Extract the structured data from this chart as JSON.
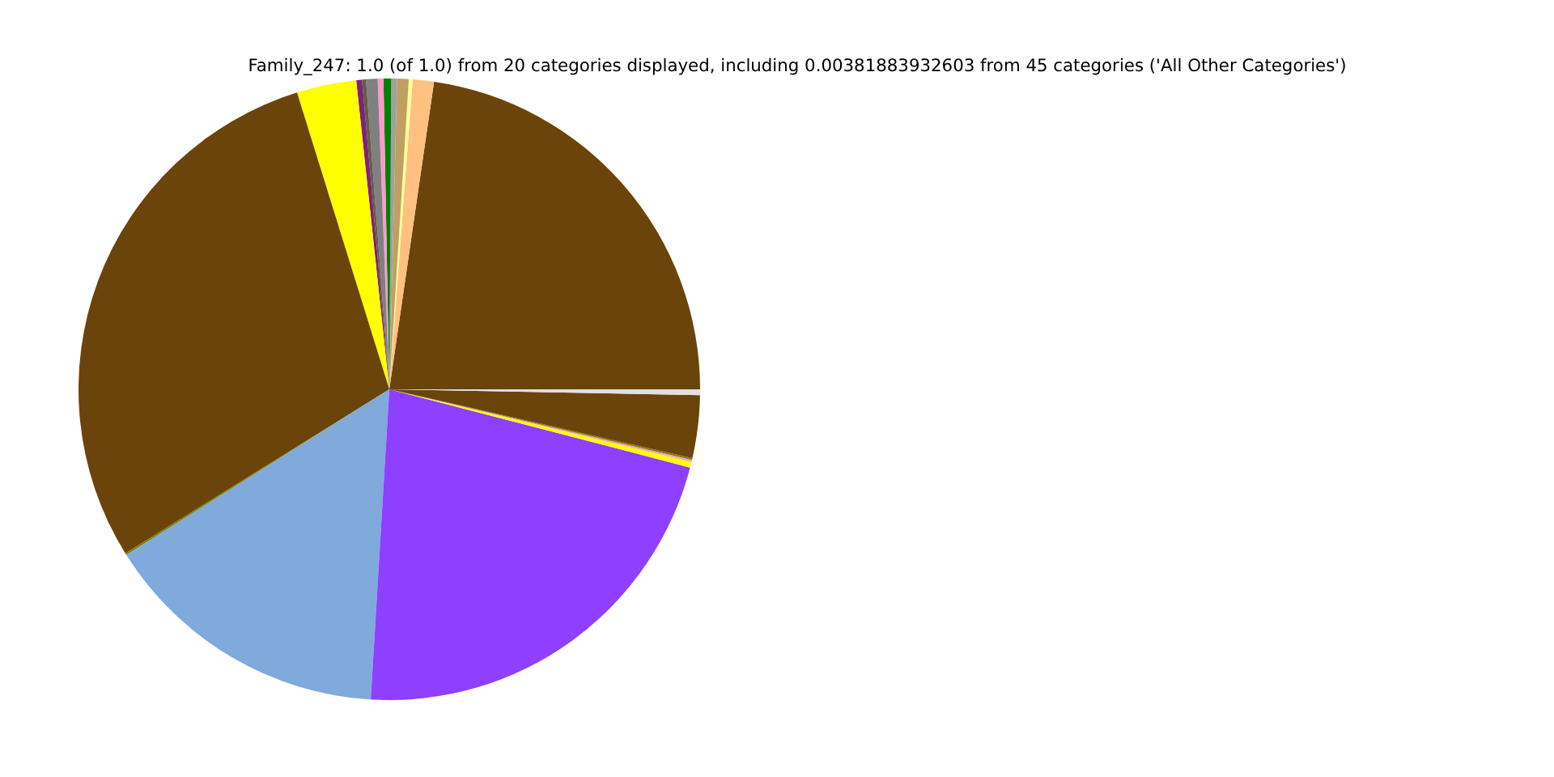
{
  "chart_data": {
    "type": "pie",
    "title": "Family_247: 1.0 (of 1.0) from 20 categories displayed, including 0.00381883932603 from 45 categories ('All Other Categories')",
    "categories": [
      null,
      null,
      null,
      null,
      null,
      null,
      null,
      null,
      null,
      null,
      null,
      null,
      null,
      null,
      null,
      null,
      null,
      null,
      null,
      null
    ],
    "values": [
      22.7,
      1.1,
      0.2,
      0.6,
      0.3,
      0.4,
      0.3,
      0.6,
      0.2,
      0.3,
      3.1,
      29.05,
      0.1,
      15.1,
      21.9,
      0.3,
      0.1,
      0.1,
      3.25,
      0.3
    ],
    "colors": [
      "#6b440b",
      "#ffc080",
      "#ffff99",
      "#c0a060",
      "#a0a0a0",
      "#008000",
      "#ff99cc",
      "#808080",
      "#606040",
      "#802080",
      "#ffff00",
      "#6b440b",
      "#808000",
      "#7faadb",
      "#8f3fff",
      "#ffff00",
      "#ffa0c0",
      "#808000",
      "#6b440b",
      "#e0e0e0"
    ],
    "legend": false
  }
}
